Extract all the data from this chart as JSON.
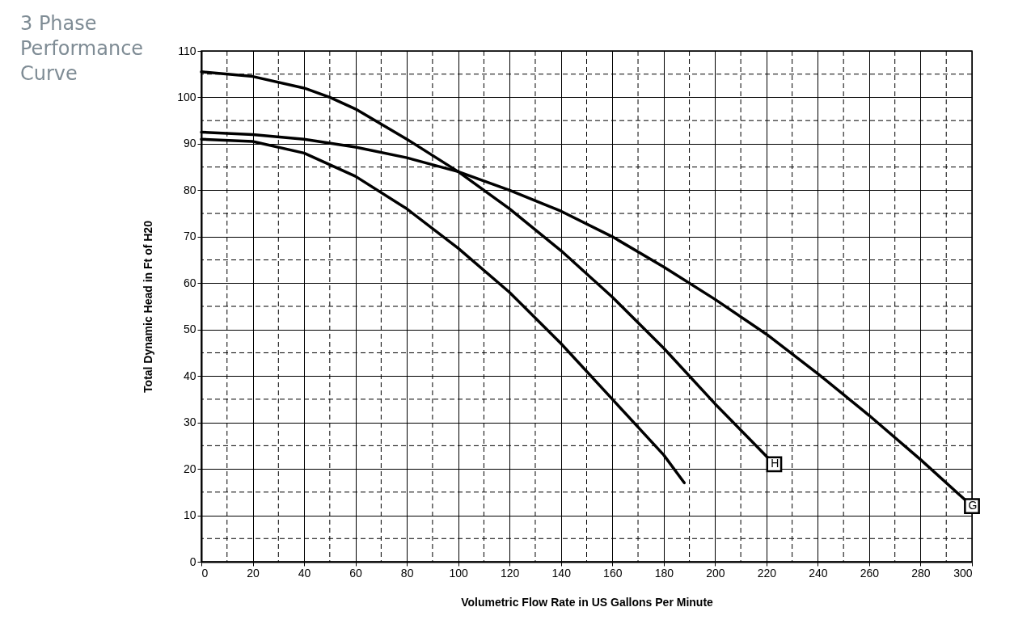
{
  "chart_data": {
    "type": "line",
    "title": "3 Phase Performance Curve",
    "xlabel": "Volumetric Flow Rate in US Gallons Per Minute",
    "ylabel": "Total Dynamic Head in Ft of H20",
    "xlim": [
      0,
      300
    ],
    "ylim": [
      0,
      110
    ],
    "xticks": [
      0,
      {
        "value": 10,
        "label": null
      },
      20,
      {
        "value": 30,
        "label": null
      },
      40,
      {
        "value": 50,
        "label": null
      },
      60,
      {
        "value": 70,
        "label": null
      },
      80,
      {
        "value": 90,
        "label": null
      },
      100,
      {
        "value": 110,
        "label": null
      },
      120,
      {
        "value": 130,
        "label": null
      },
      140,
      {
        "value": 150,
        "label": null
      },
      160,
      {
        "value": 170,
        "label": null
      },
      180,
      {
        "value": 190,
        "label": null
      },
      200,
      {
        "value": 210,
        "label": null
      },
      220,
      {
        "value": 230,
        "label": null
      },
      240,
      {
        "value": 250,
        "label": null
      },
      260,
      {
        "value": 270,
        "label": null
      },
      280,
      {
        "value": 290,
        "label": null
      },
      300
    ],
    "yticks": [
      0,
      {
        "value": 5,
        "label": null
      },
      10,
      {
        "value": 15,
        "label": null
      },
      20,
      {
        "value": 25,
        "label": null
      },
      30,
      {
        "value": 35,
        "label": null
      },
      40,
      {
        "value": 45,
        "label": null
      },
      50,
      {
        "value": 55,
        "label": null
      },
      60,
      {
        "value": 65,
        "label": null
      },
      70,
      {
        "value": 75,
        "label": null
      },
      80,
      {
        "value": 85,
        "label": null
      },
      90,
      {
        "value": 95,
        "label": null
      },
      100,
      {
        "value": 105,
        "label": null
      },
      110
    ],
    "grid": true,
    "legend": false,
    "marker": "none",
    "line_style": "solid",
    "series": [
      {
        "name": "H",
        "color": "#000000",
        "x": [
          0,
          20,
          40,
          50,
          60,
          80,
          100,
          120,
          140,
          160,
          180,
          200,
          223
        ],
        "values": [
          105.5,
          104.5,
          102,
          100,
          97.5,
          91,
          84,
          76,
          67,
          57,
          46,
          34,
          21
        ]
      },
      {
        "name": "G",
        "color": "#000000",
        "x": [
          0,
          20,
          40,
          60,
          80,
          100,
          120,
          140,
          160,
          180,
          200,
          220,
          240,
          260,
          280,
          295,
          300
        ],
        "values": [
          92.5,
          92,
          91,
          89.3,
          87,
          84,
          80,
          75.5,
          70,
          63.5,
          56.5,
          49,
          40.5,
          31.5,
          22,
          14.5,
          12
        ]
      },
      {
        "color": "#000000",
        "x": [
          0,
          20,
          40,
          60,
          80,
          100,
          120,
          140,
          160,
          180,
          188
        ],
        "values": [
          91,
          90.5,
          88,
          83,
          76,
          67.5,
          58,
          47,
          35,
          23,
          17
        ]
      }
    ]
  }
}
